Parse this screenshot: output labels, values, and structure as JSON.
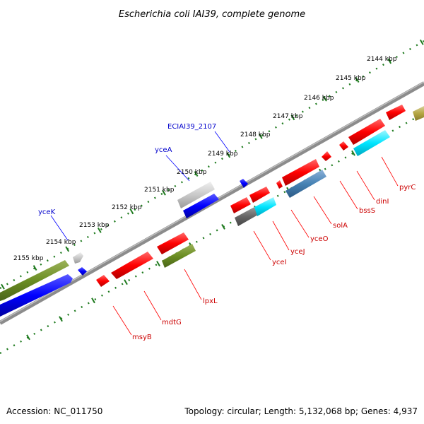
{
  "title": "Escherichia coli IAI39, complete genome",
  "footer": {
    "accession": "Accession: NC_011750",
    "summary": "Topology: circular; Length: 5,132,068 bp; Genes: 4,937"
  },
  "colors": {
    "backbone": "#8c8c8c",
    "tick": "#1e7a1e",
    "label_forward": "#0000cc",
    "label_reverse": "#cc0000",
    "label_line_forward": "#0000ff",
    "label_line_reverse": "#ff0000"
  },
  "ticks": [
    {
      "label": "2144 kbp"
    },
    {
      "label": "2145 kbp"
    },
    {
      "label": "2146 kbp"
    },
    {
      "label": "2147 kbp"
    },
    {
      "label": "2148 kbp"
    },
    {
      "label": "2149 kbp"
    },
    {
      "label": "2150 kbp"
    },
    {
      "label": "2151 kbp"
    },
    {
      "label": "2152 kbp"
    },
    {
      "label": "2153 kbp"
    },
    {
      "label": "2154 kbp"
    },
    {
      "label": "2155 kbp"
    }
  ],
  "gene_labels": [
    {
      "name": "yceK",
      "strand": "forward"
    },
    {
      "name": "yceA",
      "strand": "forward"
    },
    {
      "name": "ECIAI39_2107",
      "strand": "forward"
    },
    {
      "name": "pyrC",
      "strand": "reverse"
    },
    {
      "name": "dinI",
      "strand": "reverse"
    },
    {
      "name": "bssS",
      "strand": "reverse"
    },
    {
      "name": "solA",
      "strand": "reverse"
    },
    {
      "name": "yceO",
      "strand": "reverse"
    },
    {
      "name": "yceJ",
      "strand": "reverse"
    },
    {
      "name": "yceI",
      "strand": "reverse"
    },
    {
      "name": "lpxL",
      "strand": "reverse"
    },
    {
      "name": "mdtG",
      "strand": "reverse"
    },
    {
      "name": "msyB",
      "strand": "reverse"
    }
  ]
}
